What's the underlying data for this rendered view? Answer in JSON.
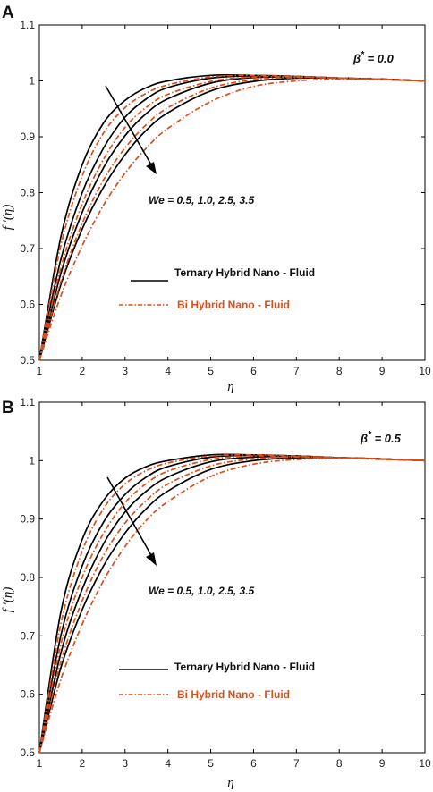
{
  "chart_data": [
    {
      "type": "line",
      "panel": "A",
      "xlabel": "η",
      "ylabel": "f ′(η)",
      "xlim": [
        1,
        10
      ],
      "ylim": [
        0.5,
        1.1
      ],
      "xticks": [
        "1",
        "2",
        "3",
        "4",
        "5",
        "6",
        "7",
        "8",
        "9",
        "10"
      ],
      "yticks": [
        "0.5",
        "0.6",
        "0.7",
        "0.8",
        "0.9",
        "1",
        "1.1"
      ],
      "grid": false,
      "parameter_label": "β",
      "parameter_sup": "*",
      "parameter_value": " = 0.0",
      "annotation": "We = 0.5, 1.0, 2.5, 3.5",
      "legend_position": "center-left",
      "legend": [
        {
          "label": "Ternary Hybrid Nano - Fluid",
          "color": "#000000",
          "style": "solid"
        },
        {
          "label": "Bi Hybrid Nano - Fluid",
          "color": "#d9501e",
          "style": "dashdot"
        }
      ],
      "series": [
        {
          "legend": "Ternary Hybrid Nano - Fluid",
          "We": 0.5,
          "values": [
            [
              1,
              0.5
            ],
            [
              1.5,
              0.72
            ],
            [
              2,
              0.85
            ],
            [
              2.5,
              0.925
            ],
            [
              3,
              0.965
            ],
            [
              3.5,
              0.988
            ],
            [
              4,
              1.0
            ],
            [
              5,
              1.01
            ],
            [
              6,
              1.01
            ],
            [
              7,
              1.008
            ],
            [
              8,
              1.005
            ],
            [
              9,
              1.003
            ],
            [
              10,
              1.0
            ]
          ]
        },
        {
          "legend": "Ternary Hybrid Nano - Fluid",
          "We": 1.0,
          "values": [
            [
              1,
              0.5
            ],
            [
              1.5,
              0.68
            ],
            [
              2,
              0.8
            ],
            [
              2.5,
              0.88
            ],
            [
              3,
              0.935
            ],
            [
              3.5,
              0.968
            ],
            [
              4,
              0.988
            ],
            [
              5,
              1.005
            ],
            [
              6,
              1.009
            ],
            [
              7,
              1.008
            ],
            [
              8,
              1.005
            ],
            [
              9,
              1.003
            ],
            [
              10,
              1.0
            ]
          ]
        },
        {
          "legend": "Ternary Hybrid Nano - Fluid",
          "We": 2.5,
          "values": [
            [
              1,
              0.5
            ],
            [
              1.5,
              0.655
            ],
            [
              2,
              0.765
            ],
            [
              2.5,
              0.845
            ],
            [
              3,
              0.902
            ],
            [
              3.5,
              0.942
            ],
            [
              4,
              0.968
            ],
            [
              5,
              0.996
            ],
            [
              6,
              1.006
            ],
            [
              7,
              1.007
            ],
            [
              8,
              1.005
            ],
            [
              9,
              1.003
            ],
            [
              10,
              1.0
            ]
          ]
        },
        {
          "legend": "Ternary Hybrid Nano - Fluid",
          "We": 3.5,
          "values": [
            [
              1,
              0.5
            ],
            [
              1.5,
              0.635
            ],
            [
              2,
              0.735
            ],
            [
              2.5,
              0.81
            ],
            [
              3,
              0.868
            ],
            [
              3.5,
              0.912
            ],
            [
              4,
              0.943
            ],
            [
              5,
              0.982
            ],
            [
              6,
              0.999
            ],
            [
              7,
              1.005
            ],
            [
              8,
              1.005
            ],
            [
              9,
              1.003
            ],
            [
              10,
              1.0
            ]
          ]
        },
        {
          "legend": "Bi Hybrid Nano - Fluid",
          "We": 0.5,
          "values": [
            [
              1,
              0.5
            ],
            [
              1.5,
              0.705
            ],
            [
              2,
              0.83
            ],
            [
              2.5,
              0.907
            ],
            [
              3,
              0.952
            ],
            [
              3.5,
              0.978
            ],
            [
              4,
              0.993
            ],
            [
              5,
              1.007
            ],
            [
              6,
              1.01
            ],
            [
              7,
              1.008
            ],
            [
              8,
              1.005
            ],
            [
              9,
              1.003
            ],
            [
              10,
              1.0
            ]
          ]
        },
        {
          "legend": "Bi Hybrid Nano - Fluid",
          "We": 1.0,
          "values": [
            [
              1,
              0.5
            ],
            [
              1.5,
              0.665
            ],
            [
              2,
              0.78
            ],
            [
              2.5,
              0.86
            ],
            [
              3,
              0.917
            ],
            [
              3.5,
              0.953
            ],
            [
              4,
              0.976
            ],
            [
              5,
              0.999
            ],
            [
              6,
              1.007
            ],
            [
              7,
              1.007
            ],
            [
              8,
              1.005
            ],
            [
              9,
              1.003
            ],
            [
              10,
              1.0
            ]
          ]
        },
        {
          "legend": "Bi Hybrid Nano - Fluid",
          "We": 2.5,
          "values": [
            [
              1,
              0.5
            ],
            [
              1.5,
              0.64
            ],
            [
              2,
              0.745
            ],
            [
              2.5,
              0.823
            ],
            [
              3,
              0.88
            ],
            [
              3.5,
              0.922
            ],
            [
              4,
              0.952
            ],
            [
              5,
              0.987
            ],
            [
              6,
              1.002
            ],
            [
              7,
              1.006
            ],
            [
              8,
              1.005
            ],
            [
              9,
              1.003
            ],
            [
              10,
              1.0
            ]
          ]
        },
        {
          "legend": "Bi Hybrid Nano - Fluid",
          "We": 3.5,
          "values": [
            [
              1,
              0.5
            ],
            [
              1.5,
              0.615
            ],
            [
              2,
              0.705
            ],
            [
              2.5,
              0.778
            ],
            [
              3,
              0.835
            ],
            [
              3.5,
              0.88
            ],
            [
              4,
              0.915
            ],
            [
              5,
              0.963
            ],
            [
              6,
              0.99
            ],
            [
              7,
              1.0
            ],
            [
              8,
              1.003
            ],
            [
              9,
              1.002
            ],
            [
              10,
              1.0
            ]
          ]
        }
      ]
    },
    {
      "type": "line",
      "panel": "B",
      "xlabel": "η",
      "ylabel": "f ′(η)",
      "xlim": [
        1,
        10
      ],
      "ylim": [
        0.5,
        1.1
      ],
      "xticks": [
        "1",
        "2",
        "3",
        "4",
        "5",
        "6",
        "7",
        "8",
        "9",
        "10"
      ],
      "yticks": [
        "0.5",
        "0.6",
        "0.7",
        "0.8",
        "0.9",
        "1",
        "1.1"
      ],
      "grid": false,
      "parameter_label": "β",
      "parameter_sup": "*",
      "parameter_value": " = 0.5",
      "annotation": "We = 0.5, 1.0, 2.5, 3.5",
      "legend_position": "lower-center",
      "legend": [
        {
          "label": "Ternary Hybrid Nano - Fluid",
          "color": "#000000",
          "style": "solid"
        },
        {
          "label": "Bi Hybrid Nano - Fluid",
          "color": "#d9501e",
          "style": "dashdot"
        }
      ],
      "series": [
        {
          "legend": "Ternary Hybrid Nano - Fluid",
          "We": 0.5,
          "values": [
            [
              1,
              0.5
            ],
            [
              1.5,
              0.74
            ],
            [
              2,
              0.865
            ],
            [
              2.5,
              0.932
            ],
            [
              3,
              0.97
            ],
            [
              3.5,
              0.99
            ],
            [
              4,
              1.0
            ],
            [
              5,
              1.01
            ],
            [
              6,
              1.01
            ],
            [
              7,
              1.008
            ],
            [
              8,
              1.005
            ],
            [
              9,
              1.003
            ],
            [
              10,
              1.0
            ]
          ]
        },
        {
          "legend": "Ternary Hybrid Nano - Fluid",
          "We": 1.0,
          "values": [
            [
              1,
              0.5
            ],
            [
              1.5,
              0.7
            ],
            [
              2,
              0.82
            ],
            [
              2.5,
              0.895
            ],
            [
              3,
              0.942
            ],
            [
              3.5,
              0.972
            ],
            [
              4,
              0.99
            ],
            [
              5,
              1.006
            ],
            [
              6,
              1.009
            ],
            [
              7,
              1.008
            ],
            [
              8,
              1.005
            ],
            [
              9,
              1.003
            ],
            [
              10,
              1.0
            ]
          ]
        },
        {
          "legend": "Ternary Hybrid Nano - Fluid",
          "We": 2.5,
          "values": [
            [
              1,
              0.5
            ],
            [
              1.5,
              0.67
            ],
            [
              2,
              0.78
            ],
            [
              2.5,
              0.858
            ],
            [
              3,
              0.912
            ],
            [
              3.5,
              0.948
            ],
            [
              4,
              0.972
            ],
            [
              5,
              0.998
            ],
            [
              6,
              1.006
            ],
            [
              7,
              1.007
            ],
            [
              8,
              1.005
            ],
            [
              9,
              1.003
            ],
            [
              10,
              1.0
            ]
          ]
        },
        {
          "legend": "Ternary Hybrid Nano - Fluid",
          "We": 3.5,
          "values": [
            [
              1,
              0.5
            ],
            [
              1.5,
              0.645
            ],
            [
              2,
              0.745
            ],
            [
              2.5,
              0.82
            ],
            [
              3,
              0.876
            ],
            [
              3.5,
              0.918
            ],
            [
              4,
              0.948
            ],
            [
              5,
              0.985
            ],
            [
              6,
              1.0
            ],
            [
              7,
              1.005
            ],
            [
              8,
              1.005
            ],
            [
              9,
              1.003
            ],
            [
              10,
              1.0
            ]
          ]
        },
        {
          "legend": "Bi Hybrid Nano - Fluid",
          "We": 0.5,
          "values": [
            [
              1,
              0.5
            ],
            [
              1.5,
              0.72
            ],
            [
              2,
              0.845
            ],
            [
              2.5,
              0.918
            ],
            [
              3,
              0.96
            ],
            [
              3.5,
              0.983
            ],
            [
              4,
              0.996
            ],
            [
              5,
              1.008
            ],
            [
              6,
              1.01
            ],
            [
              7,
              1.008
            ],
            [
              8,
              1.005
            ],
            [
              9,
              1.003
            ],
            [
              10,
              1.0
            ]
          ]
        },
        {
          "legend": "Bi Hybrid Nano - Fluid",
          "We": 1.0,
          "values": [
            [
              1,
              0.5
            ],
            [
              1.5,
              0.685
            ],
            [
              2,
              0.8
            ],
            [
              2.5,
              0.876
            ],
            [
              3,
              0.928
            ],
            [
              3.5,
              0.961
            ],
            [
              4,
              0.982
            ],
            [
              5,
              1.002
            ],
            [
              6,
              1.008
            ],
            [
              7,
              1.007
            ],
            [
              8,
              1.005
            ],
            [
              9,
              1.003
            ],
            [
              10,
              1.0
            ]
          ]
        },
        {
          "legend": "Bi Hybrid Nano - Fluid",
          "We": 2.5,
          "values": [
            [
              1,
              0.5
            ],
            [
              1.5,
              0.655
            ],
            [
              2,
              0.76
            ],
            [
              2.5,
              0.838
            ],
            [
              3,
              0.893
            ],
            [
              3.5,
              0.932
            ],
            [
              4,
              0.96
            ],
            [
              5,
              0.991
            ],
            [
              6,
              1.003
            ],
            [
              7,
              1.006
            ],
            [
              8,
              1.005
            ],
            [
              9,
              1.003
            ],
            [
              10,
              1.0
            ]
          ]
        },
        {
          "legend": "Bi Hybrid Nano - Fluid",
          "We": 3.5,
          "values": [
            [
              1,
              0.5
            ],
            [
              1.5,
              0.625
            ],
            [
              2,
              0.72
            ],
            [
              2.5,
              0.795
            ],
            [
              3,
              0.853
            ],
            [
              3.5,
              0.898
            ],
            [
              4,
              0.93
            ],
            [
              5,
              0.973
            ],
            [
              6,
              0.994
            ],
            [
              7,
              1.002
            ],
            [
              8,
              1.004
            ],
            [
              9,
              1.002
            ],
            [
              10,
              1.0
            ]
          ]
        }
      ]
    }
  ]
}
